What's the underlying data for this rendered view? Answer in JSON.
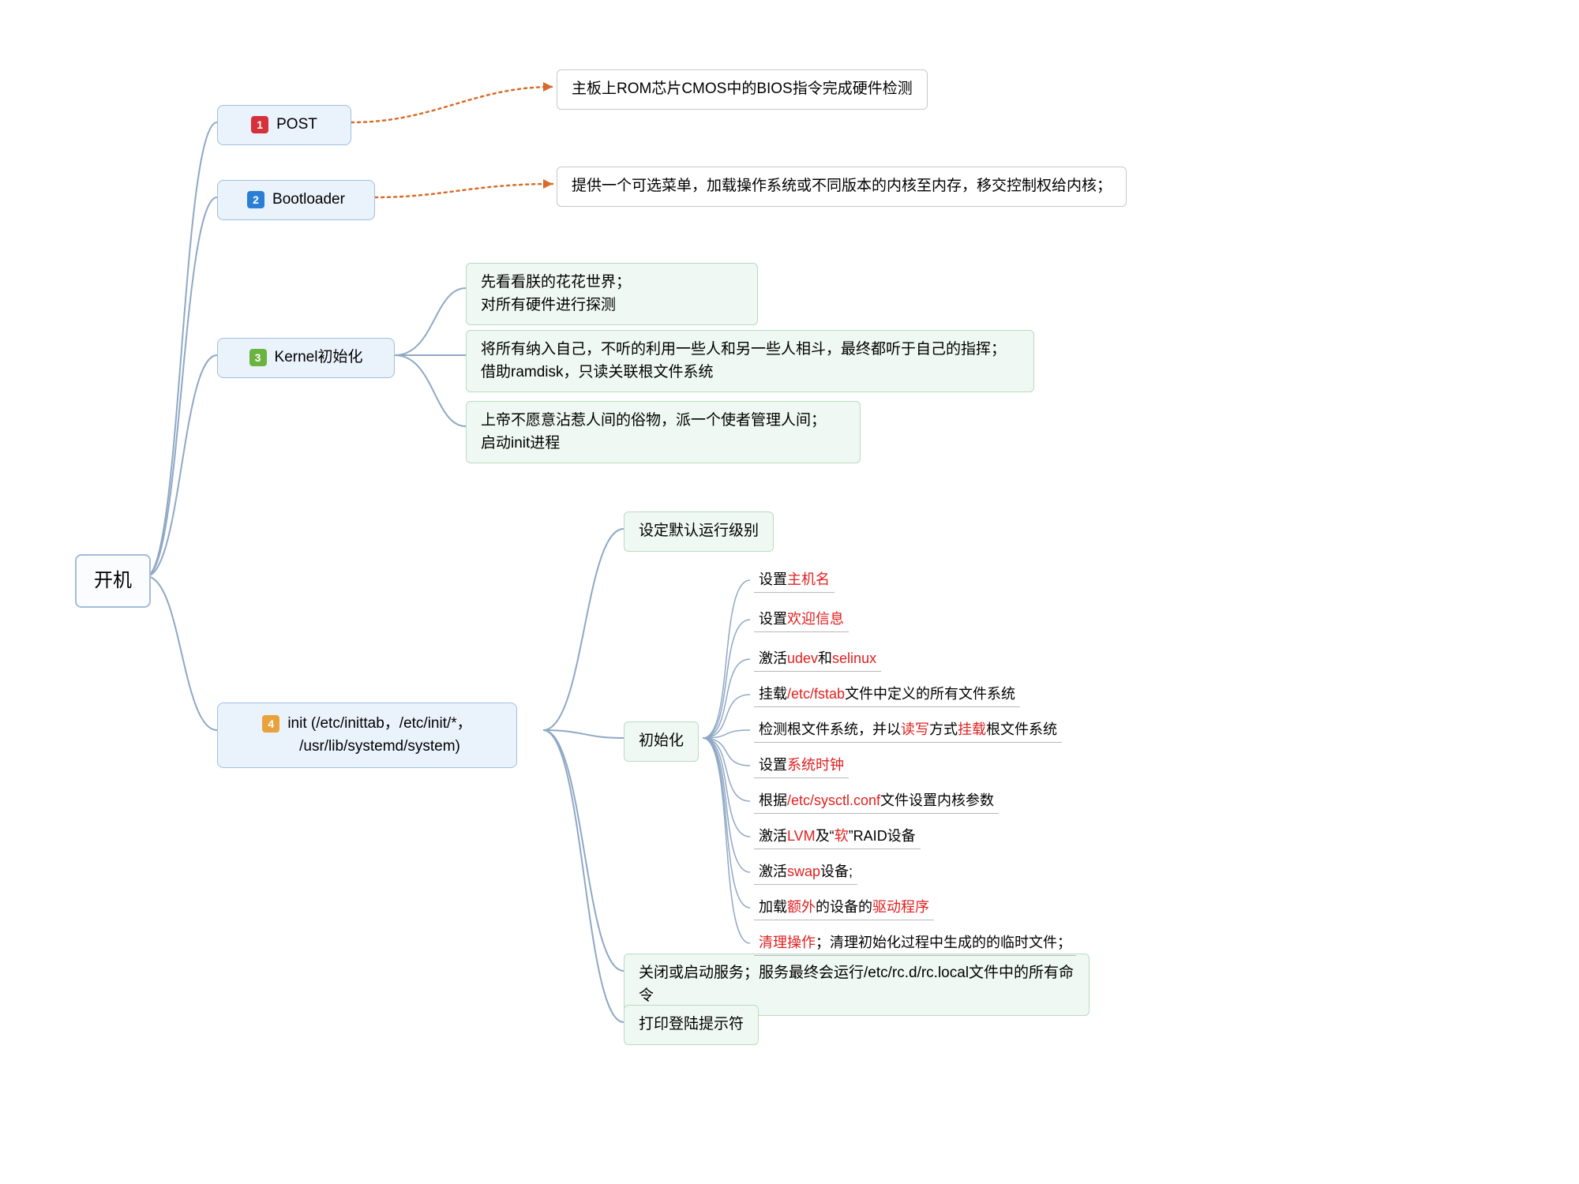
{
  "colors": {
    "root_border": "#a5bdd8",
    "step_border": "#9fc0e0",
    "step_bg": "#eaf2fb",
    "note_border": "#c8c8c8",
    "green_border": "#b9dcc3",
    "green_bg": "#eff8f2",
    "line": "#8fa8c5",
    "dotted": "#d86b2a",
    "leaf_underline": "#b8b8b8",
    "highlight": "#e02020",
    "num_bg": [
      "#d6303a",
      "#2a7fd4",
      "#6bb33f",
      "#e9a23b"
    ]
  },
  "root": "开机",
  "steps": {
    "s1": "POST",
    "s2": "Bootloader",
    "s3": "Kernel初始化",
    "s4_l1": "init (/etc/inittab，/etc/init/*，",
    "s4_l2": "/usr/lib/systemd/system)"
  },
  "notes": {
    "n1": "主板上ROM芯片CMOS中的BIOS指令完成硬件检测",
    "n2": "提供一个可选菜单，加载操作系统或不同版本的内核至内存，移交控制权给内核；"
  },
  "kernel": {
    "k1a": "先看看朕的花花世界；",
    "k1b": "对所有硬件进行探测",
    "k2a": "将所有纳入自己，不听的利用一些人和另一些人相斗，最终都听于自己的指挥；",
    "k2b": "借助ramdisk，只读关联根文件系统",
    "k3a": "上帝不愿意沾惹人间的俗物，派一个使者管理人间；",
    "k3b": "启动init进程"
  },
  "init_green": {
    "g1": "设定默认运行级别",
    "g2": "初始化",
    "g3": "关闭或启动服务；服务最终会运行/etc/rc.d/rc.local文件中的所有命令",
    "g4": "打印登陆提示符"
  },
  "init_items": {
    "i1": "设置<span class='hl'>主机名</span>",
    "i2": "设置<span class='hl'>欢迎信息</span>",
    "i3": "激活<span class='hl'>udev</span>和<span class='hl'>selinux</span>",
    "i4": "挂载<span class='hl'>/etc/fstab</span>文件中定义的所有文件系统",
    "i5": "检测根文件系统，并以<span class='hl'>读写</span>方式<span class='hl'>挂载</span>根文件系统",
    "i6": "设置<span class='hl'>系统时钟</span>",
    "i7": "根据<span class='hl'>/etc/sysctl.conf</span>文件设置内核参数",
    "i8": "激活<span class='hl'>LVM</span>及“<span class='hl'>软</span>”RAID设备",
    "i9": "激活<span class='hl'>swap</span>设备;",
    "i10": "加载<span class='hl'>额外</span>的设备的<span class='hl'>驱动程序</span>",
    "i11": "<span class='hl'>清理操作</span>；清理初始化过程中生成的的临时文件；"
  }
}
